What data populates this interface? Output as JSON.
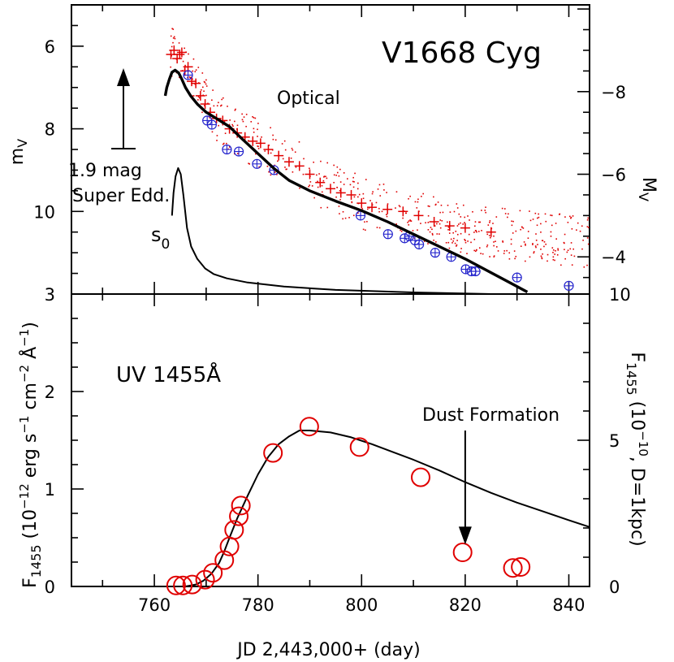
{
  "chart_data": [
    {
      "type": "scatter",
      "title": "V1668 Cyg",
      "xlabel": "JD 2,443,000+ (day)",
      "ylabel": "m_V",
      "y2label": "M_V",
      "xlim": [
        744,
        844
      ],
      "ylim": [
        12,
        5
      ],
      "y2lim": [
        -3.1,
        -10.1
      ],
      "x_ticks": [
        "760",
        "780",
        "800",
        "820",
        "840"
      ],
      "y_ticks": [
        "6",
        "8",
        "10"
      ],
      "y2_ticks": [
        "−8",
        "−6",
        "−4"
      ],
      "grid": false,
      "annotations": {
        "optical": "Optical",
        "arrow_label_1": "1.9 mag",
        "arrow_label_2": "Super Edd.",
        "s0_main": "s",
        "s0_sub": "0"
      },
      "series": [
        {
          "color": "#e00000",
          "marker": "plus",
          "x": [
            763.2,
            763.8,
            764.4,
            764.9,
            765.3,
            765.9,
            766.5,
            767.2,
            768,
            768.9,
            769.8,
            770.8,
            772,
            773.2,
            774.5,
            776,
            777.5,
            779,
            780.5,
            782,
            784,
            786,
            788,
            790,
            792,
            794,
            796,
            798,
            800,
            802,
            805,
            808,
            811,
            814,
            817,
            820,
            825
          ],
          "y": [
            6.2,
            6.1,
            6.3,
            6.2,
            6.15,
            6.6,
            6.5,
            6.85,
            6.9,
            7.2,
            7.4,
            7.6,
            7.75,
            7.8,
            8.0,
            8.1,
            8.2,
            8.3,
            8.35,
            8.5,
            8.65,
            8.8,
            8.9,
            9.1,
            9.3,
            9.45,
            9.55,
            9.6,
            9.8,
            9.9,
            9.95,
            10.0,
            10.1,
            10.25,
            10.35,
            10.4,
            10.5
          ]
        },
        {
          "color": "#2222cc",
          "marker": "circled-plus",
          "x": [
            766.5,
            770.2,
            771.1,
            774,
            776.3,
            779.8,
            783.1,
            799.8,
            805.1,
            808.3,
            809.2,
            810.3,
            811.1,
            814.2,
            817.3,
            820.1,
            821.2,
            822,
            830,
            840
          ],
          "y": [
            6.7,
            7.8,
            7.9,
            8.5,
            8.55,
            8.85,
            9.0,
            10.1,
            10.55,
            10.65,
            10.6,
            10.7,
            10.8,
            11.0,
            11.1,
            11.4,
            11.45,
            11.45,
            11.6,
            11.8
          ]
        },
        {
          "type": "line",
          "color": "#000000",
          "x": [
            762.1,
            762.4,
            762.9,
            763.4,
            764.0,
            764.7,
            765.3,
            766.0,
            767.0,
            768.3,
            770.0,
            772.0,
            774.5,
            777.0,
            780.0,
            783.0,
            786.0,
            790.0,
            795.0,
            800.0,
            805.0,
            810.0,
            815.0,
            820.0,
            826.0,
            832.0
          ],
          "y": [
            7.2,
            7.0,
            6.8,
            6.63,
            6.58,
            6.65,
            6.8,
            7.0,
            7.2,
            7.4,
            7.6,
            7.75,
            7.95,
            8.25,
            8.6,
            8.95,
            9.25,
            9.5,
            9.75,
            9.98,
            10.25,
            10.55,
            10.85,
            11.15,
            11.55,
            11.95
          ]
        },
        {
          "type": "line",
          "color": "#000000",
          "x": [
            763.4,
            763.7,
            764.1,
            764.6,
            765.1,
            765.6,
            766.3,
            767.1,
            768.3,
            769.8,
            771.5,
            774,
            778,
            785,
            795,
            810,
            825,
            840
          ],
          "y": [
            10.1,
            9.55,
            9.15,
            8.95,
            9.1,
            9.6,
            10.4,
            10.85,
            11.15,
            11.38,
            11.52,
            11.62,
            11.72,
            11.82,
            11.9,
            11.96,
            12.0,
            12.03
          ]
        }
      ]
    },
    {
      "type": "scatter",
      "title": "UV 1455Å",
      "xlabel": "JD 2,443,000+ (day)",
      "ylabel": "F1455 (10^-12 erg s^-1 cm^-2 Å^-1)",
      "y2label": "F1455 (10^-10, D=1kpc)",
      "xlim": [
        744,
        844
      ],
      "ylim": [
        0,
        3
      ],
      "y2lim": [
        0,
        10
      ],
      "x_ticks": [
        "760",
        "780",
        "800",
        "820",
        "840"
      ],
      "y_ticks": [
        "0",
        "1",
        "2",
        "3"
      ],
      "y2_ticks": [
        "0",
        "5",
        "10"
      ],
      "grid": false,
      "annotations": {
        "dust": "Dust Formation",
        "dust_arrow_x": 820,
        "dust_arrow_from": 1.6,
        "dust_arrow_to": 0.43
      },
      "series": [
        {
          "color": "#e00000",
          "marker": "open-circle",
          "x": [
            764.2,
            765.5,
            767.3,
            769.8,
            771.3,
            773.5,
            774.5,
            775.4,
            776.3,
            776.7,
            782.9,
            789.9,
            799.6,
            811.4,
            819.5,
            829.2,
            830.7
          ],
          "y": [
            0.01,
            0.01,
            0.02,
            0.07,
            0.14,
            0.27,
            0.41,
            0.58,
            0.72,
            0.83,
            1.37,
            1.64,
            1.43,
            1.12,
            0.35,
            0.19,
            0.2
          ]
        },
        {
          "type": "line",
          "color": "#000000",
          "x": [
            763.5,
            766,
            768,
            769.5,
            771,
            772.5,
            773.5,
            774.5,
            776,
            778,
            780,
            782,
            784,
            786,
            788,
            790,
            794,
            798,
            802,
            806,
            810,
            815,
            820,
            825,
            830,
            835,
            840,
            844
          ],
          "y": [
            0.0,
            0.0,
            0.02,
            0.06,
            0.13,
            0.24,
            0.36,
            0.5,
            0.7,
            0.93,
            1.15,
            1.33,
            1.46,
            1.54,
            1.6,
            1.6,
            1.58,
            1.53,
            1.46,
            1.38,
            1.3,
            1.19,
            1.07,
            0.96,
            0.86,
            0.77,
            0.68,
            0.61
          ]
        }
      ]
    }
  ]
}
